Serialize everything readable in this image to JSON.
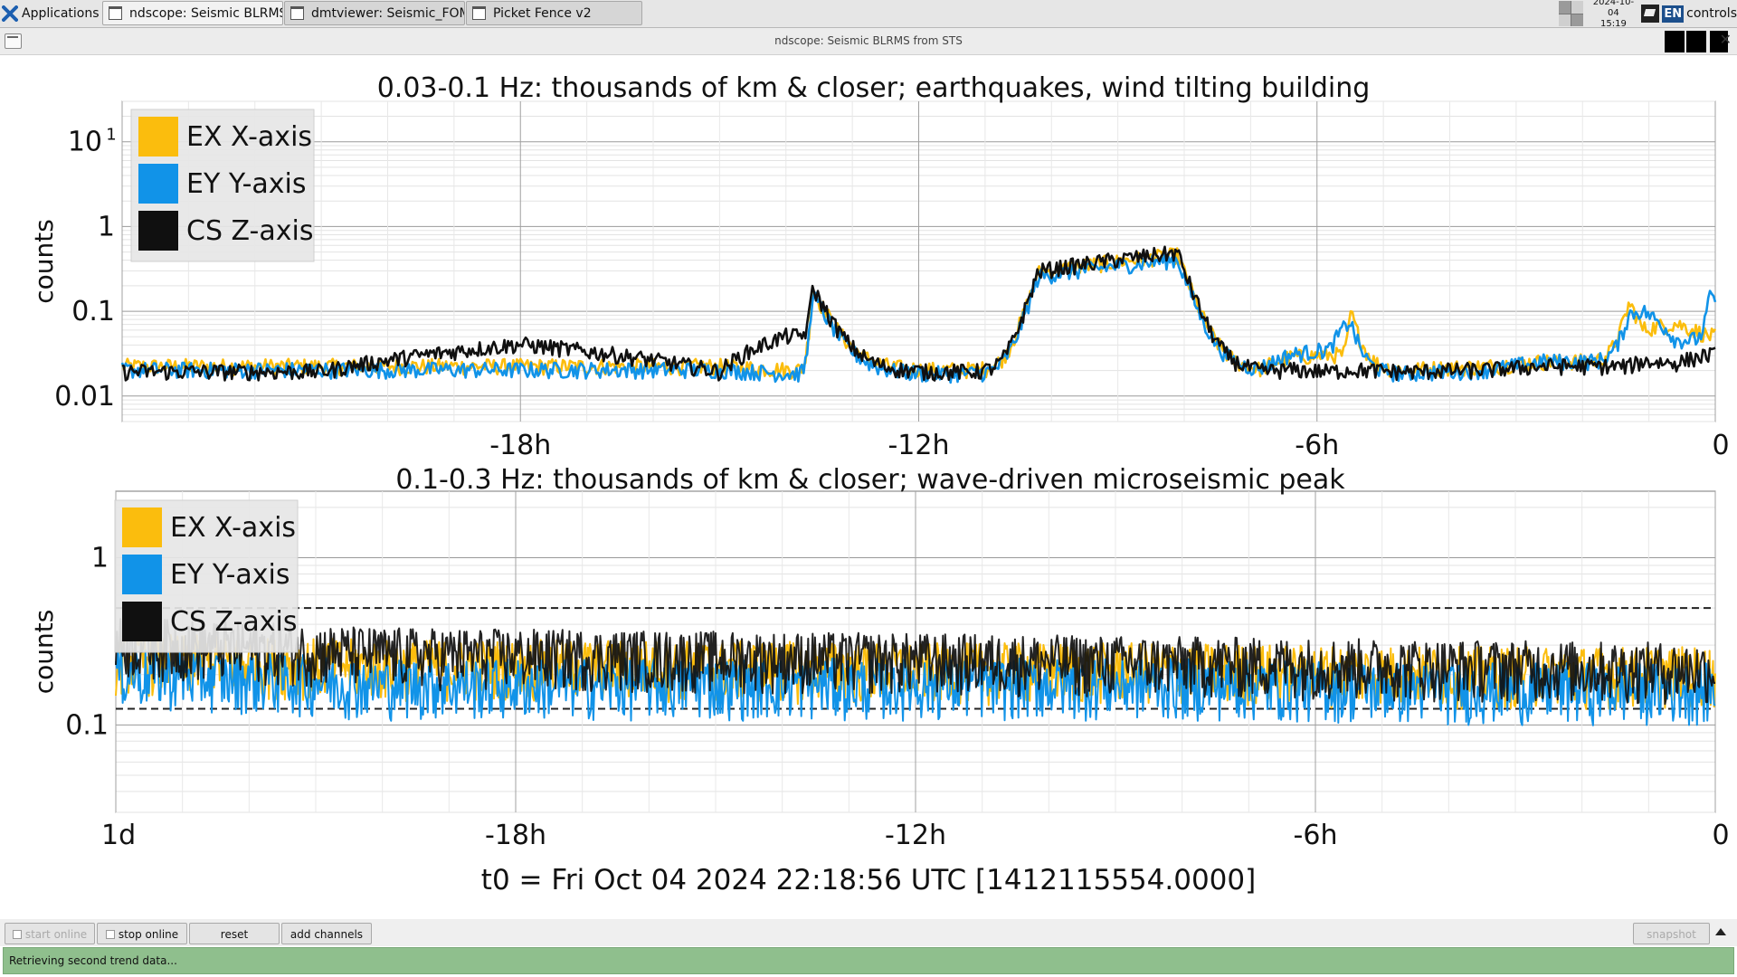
{
  "taskbar": {
    "apps_label": "Applications",
    "tasks": [
      {
        "label": "ndscope: Seismic BLRMS f..."
      },
      {
        "label": "dmtviewer: Seismic_FOM_..."
      },
      {
        "label": "Picket Fence v2"
      }
    ],
    "clock_date": "2024-10-04",
    "clock_time": "15:19",
    "keyboard": "EN",
    "user": "controls"
  },
  "window": {
    "title": "ndscope: Seismic BLRMS from STS"
  },
  "plots": {
    "x_ticks": [
      "1d",
      "-18h",
      "-12h",
      "-6h",
      "0"
    ],
    "t0_label": "t0 = Fri Oct 04 2024 22:18:56 UTC [1412115554.0000]",
    "colors": {
      "ex": "#fbbd0d",
      "ey": "#1193e8",
      "cs": "#101010"
    }
  },
  "chart_data": [
    {
      "type": "line",
      "title": "0.03-0.1 Hz: thousands of km & closer; earthquakes, wind tilting building",
      "ylabel": "counts",
      "yscale": "log",
      "ylim": [
        0.005,
        30
      ],
      "y_ticks": [
        {
          "value": 10,
          "label": "10"
        },
        {
          "value": 1,
          "label": "1"
        },
        {
          "value": 0.1,
          "label": "0.1"
        },
        {
          "value": 0.01,
          "label": "0.01"
        }
      ],
      "x_ticks": [
        -18,
        -12,
        -6,
        0
      ],
      "xlim": [
        -24,
        0
      ],
      "legend": "top-left",
      "series": [
        {
          "name": "EX X-axis",
          "color": "#fbbd0d",
          "baseline": 0.022,
          "x": [
            -24,
            -21,
            -18,
            -15,
            -14,
            -13.6,
            -12,
            -10.2,
            -8.1,
            -6.9,
            -6.4,
            -5.8,
            -5.5,
            -4.7,
            -3.4,
            -2.6,
            -1.3,
            -1.1,
            -0.6,
            -0.1
          ],
          "values": [
            0.022,
            0.022,
            0.022,
            0.022,
            0.02,
            0.18,
            0.02,
            0.28,
            0.45,
            0.02,
            0.028,
            0.03,
            0.1,
            0.02,
            0.022,
            0.025,
            0.12,
            0.06,
            0.07,
            0.05
          ]
        },
        {
          "name": "EY Y-axis",
          "color": "#1193e8",
          "baseline": 0.02,
          "x": [
            -24,
            -21,
            -18,
            -15,
            -14,
            -13.6,
            -12,
            -10.2,
            -8.1,
            -6.9,
            -6.4,
            -5.8,
            -5.5,
            -4.7,
            -3.4,
            -2.6,
            -1.3,
            -1.1,
            -0.6,
            -0.1
          ],
          "values": [
            0.02,
            0.02,
            0.02,
            0.02,
            0.018,
            0.16,
            0.018,
            0.25,
            0.4,
            0.02,
            0.03,
            0.035,
            0.075,
            0.018,
            0.02,
            0.025,
            0.09,
            0.1,
            0.045,
            0.14
          ]
        },
        {
          "name": "CS Z-axis",
          "color": "#101010",
          "baseline": 0.019,
          "x": [
            -24,
            -21,
            -18,
            -15,
            -14,
            -13.6,
            -12,
            -10.2,
            -8.1,
            -6.9,
            -6.4,
            -5.8,
            -5.5,
            -4.7,
            -3.4,
            -2.6,
            -1.3,
            -1.1,
            -0.6,
            -0.1
          ],
          "values": [
            0.019,
            0.019,
            0.04,
            0.019,
            0.05,
            0.19,
            0.019,
            0.29,
            0.48,
            0.019,
            0.02,
            0.019,
            0.02,
            0.019,
            0.02,
            0.022,
            0.022,
            0.025,
            0.024,
            0.03
          ]
        }
      ]
    },
    {
      "type": "line",
      "title": "0.1-0.3 Hz: thousands of km & closer; wave-driven microseismic peak",
      "ylabel": "counts",
      "yscale": "log",
      "ylim": [
        0.03,
        2.5
      ],
      "y_ticks": [
        {
          "value": 1,
          "label": "1"
        },
        {
          "value": 0.1,
          "label": "0.1"
        }
      ],
      "x_ticks": [
        -24,
        -18,
        -12,
        -6,
        0
      ],
      "xlim": [
        -24,
        0
      ],
      "legend": "top-left",
      "threshold_lines": [
        0.5,
        0.125
      ],
      "series": [
        {
          "name": "EX X-axis",
          "color": "#fbbd0d",
          "x": [
            -24,
            -20,
            -16,
            -12,
            -8,
            -4,
            0
          ],
          "values": [
            0.24,
            0.22,
            0.22,
            0.21,
            0.21,
            0.2,
            0.2
          ]
        },
        {
          "name": "EY Y-axis",
          "color": "#1193e8",
          "x": [
            -24,
            -20,
            -16,
            -12,
            -8,
            -4,
            0
          ],
          "values": [
            0.2,
            0.17,
            0.17,
            0.17,
            0.17,
            0.16,
            0.16
          ]
        },
        {
          "name": "CS Z-axis",
          "color": "#101010",
          "x": [
            -24,
            -20,
            -16,
            -12,
            -8,
            -4,
            0
          ],
          "values": [
            0.3,
            0.26,
            0.25,
            0.24,
            0.23,
            0.22,
            0.21
          ]
        }
      ]
    }
  ],
  "buttons": {
    "start_online": "start online",
    "stop_online": "stop online",
    "reset": "reset",
    "add_channels": "add channels",
    "snapshot": "snapshot"
  },
  "status": "Retrieving second trend data..."
}
